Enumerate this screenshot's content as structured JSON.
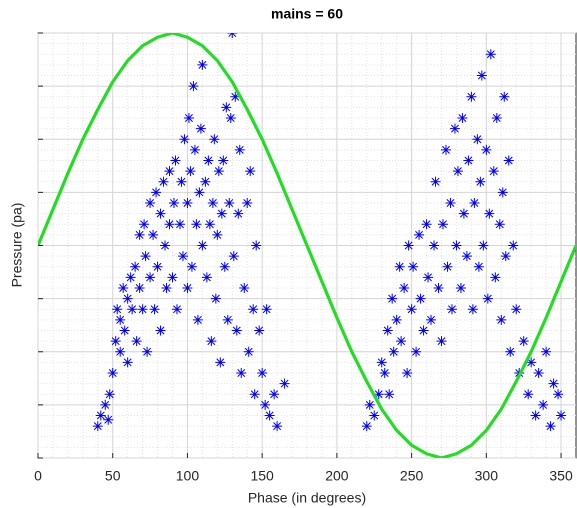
{
  "chart_data": {
    "type": "scatter",
    "title": "mains = 60",
    "x_label": "Phase (in degrees)",
    "y_label": "Pressure (pa)",
    "xlim": [
      0,
      360
    ],
    "ylim": [
      -1,
      1
    ],
    "xticks": [
      0,
      50,
      100,
      150,
      200,
      250,
      300,
      350
    ],
    "yticks": [
      -1,
      -0.75,
      -0.5,
      -0.25,
      0,
      0.25,
      0.5,
      0.75,
      1
    ],
    "grid": true,
    "minor_grid": true,
    "series": [
      {
        "type": "scatter",
        "color": "#0000ff",
        "x": [
          40,
          42,
          45,
          47,
          48,
          50,
          52,
          53,
          55,
          55,
          57,
          58,
          60,
          60,
          62,
          63,
          65,
          66,
          68,
          68,
          70,
          71,
          72,
          73,
          75,
          75,
          77,
          78,
          79,
          80,
          82,
          82,
          84,
          85,
          86,
          88,
          88,
          90,
          91,
          92,
          93,
          95,
          96,
          97,
          98,
          100,
          100,
          101,
          102,
          103,
          104,
          105,
          106,
          107,
          108,
          109,
          110,
          110,
          112,
          113,
          114,
          115,
          116,
          117,
          118,
          119,
          120,
          121,
          122,
          123,
          124,
          125,
          126,
          127,
          128,
          129,
          130,
          131,
          132,
          133,
          134,
          135,
          136,
          138,
          140,
          141,
          142,
          144,
          145,
          146,
          148,
          150,
          152,
          153,
          155,
          158,
          160,
          165,
          220,
          222,
          225,
          228,
          230,
          232,
          234,
          235,
          237,
          238,
          240,
          242,
          243,
          245,
          247,
          248,
          250,
          251,
          253,
          255,
          256,
          258,
          260,
          261,
          263,
          265,
          266,
          268,
          270,
          271,
          273,
          274,
          276,
          277,
          279,
          280,
          281,
          283,
          284,
          285,
          287,
          288,
          290,
          291,
          292,
          294,
          295,
          296,
          297,
          298,
          300,
          301,
          302,
          303,
          305,
          306,
          307,
          309,
          310,
          311,
          312,
          313,
          315,
          316,
          318,
          320,
          322,
          325,
          328,
          330,
          333,
          335,
          338,
          340,
          343,
          345,
          348,
          350
        ],
        "values": [
          -0.85,
          -0.8,
          -0.75,
          -0.82,
          -0.7,
          -0.6,
          -0.45,
          -0.3,
          -0.35,
          -0.5,
          -0.2,
          -0.4,
          -0.25,
          -0.55,
          -0.15,
          -0.3,
          -0.1,
          -0.45,
          -0.2,
          0.05,
          -0.3,
          0.1,
          -0.05,
          -0.5,
          0.2,
          -0.15,
          0.05,
          -0.3,
          0.25,
          -0.1,
          0.15,
          -0.4,
          0.3,
          0,
          -0.2,
          0.35,
          0.1,
          -0.15,
          0.2,
          0.4,
          -0.3,
          0.1,
          0.3,
          -0.05,
          0.5,
          0.2,
          -0.2,
          0.6,
          0.35,
          -0.1,
          0.75,
          0.45,
          0.1,
          -0.35,
          0.25,
          0.55,
          0,
          0.85,
          0.3,
          -0.15,
          0.4,
          0.1,
          -0.45,
          0.2,
          0.5,
          -0.25,
          0.05,
          0.35,
          -0.55,
          0.15,
          0.4,
          -0.1,
          0.65,
          -0.35,
          0.2,
          0.6,
          1,
          -0.05,
          0.7,
          -0.4,
          0.15,
          0.45,
          -0.6,
          -0.2,
          0.2,
          -0.5,
          0.35,
          -0.3,
          -0.7,
          0,
          -0.4,
          -0.6,
          -0.75,
          -0.3,
          -0.8,
          -0.7,
          -0.85,
          -0.65,
          -0.85,
          -0.75,
          -0.8,
          -0.7,
          -0.55,
          -0.6,
          -0.4,
          -0.7,
          -0.25,
          -0.5,
          -0.35,
          -0.1,
          -0.45,
          -0.2,
          -0.6,
          0,
          -0.3,
          -0.1,
          -0.5,
          0.05,
          -0.25,
          -0.4,
          0.1,
          -0.15,
          -0.35,
          0,
          0.3,
          -0.2,
          -0.45,
          0.1,
          0.45,
          -0.1,
          0.2,
          -0.3,
          0.55,
          0,
          0.35,
          -0.2,
          0.6,
          0.15,
          -0.05,
          0.4,
          0.7,
          -0.3,
          0.2,
          0.5,
          -0.1,
          0.3,
          0.8,
          0,
          0.45,
          -0.25,
          0.15,
          0.9,
          0.35,
          -0.15,
          0.6,
          0.1,
          -0.35,
          0.25,
          0.7,
          -0.05,
          0.4,
          -0.5,
          0,
          -0.3,
          -0.6,
          -0.45,
          -0.7,
          -0.55,
          -0.8,
          -0.6,
          -0.75,
          -0.5,
          -0.85,
          -0.65,
          -0.7,
          -0.8
        ]
      },
      {
        "type": "line",
        "color": "#22dd22",
        "x": [
          0,
          10,
          20,
          30,
          40,
          50,
          60,
          70,
          80,
          90,
          100,
          110,
          120,
          130,
          140,
          150,
          160,
          170,
          180,
          190,
          200,
          210,
          220,
          230,
          240,
          250,
          260,
          270,
          280,
          290,
          300,
          310,
          320,
          330,
          340,
          350,
          360
        ],
        "values": [
          0,
          0.17,
          0.34,
          0.5,
          0.64,
          0.77,
          0.87,
          0.94,
          0.98,
          1,
          0.98,
          0.94,
          0.87,
          0.77,
          0.64,
          0.5,
          0.34,
          0.17,
          0,
          -0.17,
          -0.34,
          -0.5,
          -0.64,
          -0.77,
          -0.87,
          -0.94,
          -0.98,
          -1,
          -0.98,
          -0.94,
          -0.87,
          -0.77,
          -0.64,
          -0.5,
          -0.34,
          -0.17,
          0
        ]
      }
    ]
  }
}
